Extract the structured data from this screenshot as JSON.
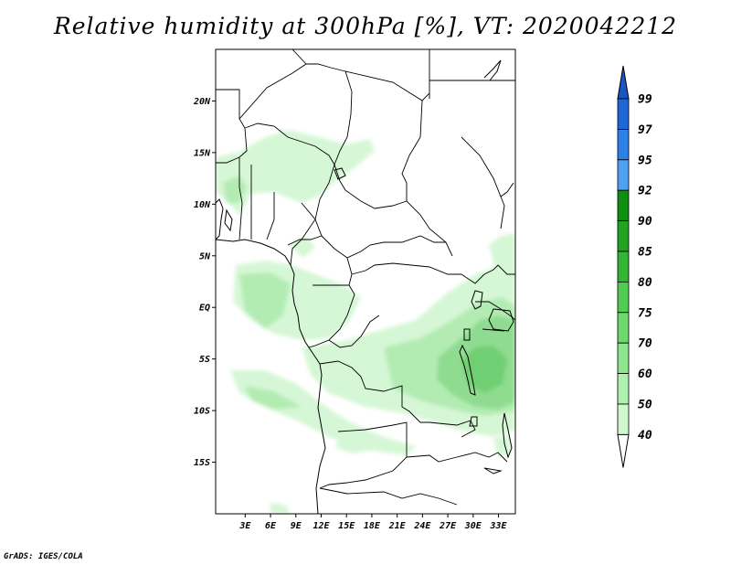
{
  "title": "Relative humidity at 300hPa [%], VT: 2020042212",
  "credit": "GrADS: IGES/COLA",
  "map": {
    "lon_range": [
      -0.5,
      35
    ],
    "lat_range": [
      -20,
      25
    ],
    "lat_ticks": [
      {
        "value": 20,
        "label": "20N"
      },
      {
        "value": 15,
        "label": "15N"
      },
      {
        "value": 10,
        "label": "10N"
      },
      {
        "value": 5,
        "label": "5N"
      },
      {
        "value": 0,
        "label": "EQ"
      },
      {
        "value": -5,
        "label": "5S"
      },
      {
        "value": -10,
        "label": "10S"
      },
      {
        "value": -15,
        "label": "15S"
      }
    ],
    "lon_ticks": [
      {
        "value": 3,
        "label": "3E"
      },
      {
        "value": 6,
        "label": "6E"
      },
      {
        "value": 9,
        "label": "9E"
      },
      {
        "value": 12,
        "label": "12E"
      },
      {
        "value": 15,
        "label": "15E"
      },
      {
        "value": 18,
        "label": "18E"
      },
      {
        "value": 21,
        "label": "21E"
      },
      {
        "value": 24,
        "label": "24E"
      },
      {
        "value": 27,
        "label": "27E"
      },
      {
        "value": 30,
        "label": "30E"
      },
      {
        "value": 33,
        "label": "33E"
      }
    ]
  },
  "colorbar": {
    "levels": [
      {
        "label": "99",
        "color": "#1f66d6"
      },
      {
        "label": "97",
        "color": "#2d80e6"
      },
      {
        "label": "95",
        "color": "#4fa1f0"
      },
      {
        "label": "92",
        "color": "#0f8f12"
      },
      {
        "label": "90",
        "color": "#22a324"
      },
      {
        "label": "85",
        "color": "#34b535"
      },
      {
        "label": "80",
        "color": "#50cc52"
      },
      {
        "label": "75",
        "color": "#6ed86f"
      },
      {
        "label": "70",
        "color": "#8ee48f"
      },
      {
        "label": "60",
        "color": "#b0f0b0"
      },
      {
        "label": "50",
        "color": "#cff8cf"
      },
      {
        "label": "40",
        "color": "#e8fde8"
      }
    ],
    "top_arrow_color": "#1a55c4",
    "bottom_arrow_color": "#ffffff"
  },
  "humidity_colors": {
    "light": "#d6f7d6",
    "mid": "#b2ecb2",
    "strong": "#8fdc90",
    "dark": "#6fcf72"
  }
}
